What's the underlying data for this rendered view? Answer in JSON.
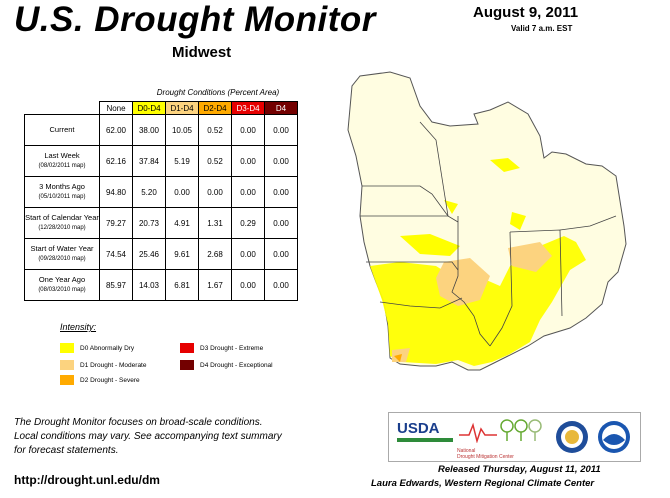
{
  "header": {
    "title": "U.S. Drought Monitor",
    "region": "Midwest",
    "date": "August 9, 2011",
    "valid": "Valid 7 a.m. EST"
  },
  "table": {
    "caption": "Drought Conditions (Percent Area)",
    "columns": [
      "None",
      "D0-D4",
      "D1-D4",
      "D2-D4",
      "D3-D4",
      "D4"
    ],
    "column_colors": [
      "#ffffff",
      "#ffff00",
      "#fcd37f",
      "#ffaa00",
      "#e60000",
      "#730000"
    ],
    "column_text_colors": [
      "#000000",
      "#000000",
      "#000000",
      "#000000",
      "#ffffff",
      "#ffffff"
    ],
    "rows": [
      {
        "label": "Current",
        "sublabel": "",
        "values": [
          "62.00",
          "38.00",
          "10.05",
          "0.52",
          "0.00",
          "0.00"
        ]
      },
      {
        "label": "Last Week",
        "sublabel": "(08/02/2011 map)",
        "values": [
          "62.16",
          "37.84",
          "5.19",
          "0.52",
          "0.00",
          "0.00"
        ]
      },
      {
        "label": "3 Months Ago",
        "sublabel": "(05/10/2011 map)",
        "values": [
          "94.80",
          "5.20",
          "0.00",
          "0.00",
          "0.00",
          "0.00"
        ]
      },
      {
        "label": "Start of Calendar Year",
        "sublabel": "(12/28/2010 map)",
        "values": [
          "79.27",
          "20.73",
          "4.91",
          "1.31",
          "0.29",
          "0.00"
        ]
      },
      {
        "label": "Start of Water Year",
        "sublabel": "(09/28/2010 map)",
        "values": [
          "74.54",
          "25.46",
          "9.61",
          "2.68",
          "0.00",
          "0.00"
        ]
      },
      {
        "label": "One Year Ago",
        "sublabel": "(08/03/2010 map)",
        "values": [
          "85.97",
          "14.03",
          "6.81",
          "1.67",
          "0.00",
          "0.00"
        ]
      }
    ]
  },
  "legend": {
    "title": "Intensity:",
    "items": [
      {
        "label": "D0 Abnormally Dry",
        "color": "#ffff00"
      },
      {
        "label": "D1 Drought - Moderate",
        "color": "#fcd37f"
      },
      {
        "label": "D2 Drought - Severe",
        "color": "#ffaa00"
      },
      {
        "label": "D3 Drought - Extreme",
        "color": "#e60000"
      },
      {
        "label": "D4 Drought - Exceptional",
        "color": "#730000"
      }
    ]
  },
  "footer": {
    "note_line1": "The Drought Monitor focuses on broad-scale conditions.",
    "note_line2": "Local conditions may vary. See accompanying text summary",
    "note_line3": "for forecast statements.",
    "url": "http://drought.unl.edu/dm",
    "released": "Released Thursday, August 11, 2011",
    "author": "Laura Edwards, Western Regional Climate Center"
  },
  "logos": {
    "usda": "USDA",
    "ndmc_line1": "National",
    "ndmc_line2": "Drought Mitigation Center"
  }
}
